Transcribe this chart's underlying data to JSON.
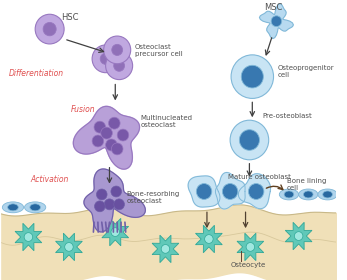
{
  "background_color": "#ffffff",
  "bone_color": "#f0e0b8",
  "bone_line_color": "#c8b888",
  "osteocyte_color": "#60c8b8",
  "osteocyte_stroke": "#30a898",
  "osteocyte_center_color": "#a0e8e0",
  "left_cell_color": "#c0a8e0",
  "left_cell_stroke": "#9878c0",
  "left_cell_nucleus_color": "#9070b8",
  "left_cell_big_color": "#b8a0d8",
  "left_cell_big_nucleus": "#7858a8",
  "bone_resorb_color": "#a898d0",
  "bone_resorb_nucleus": "#6850a0",
  "bone_resorb_stroke": "#7060a8",
  "right_cell_color": "#c8e4f4",
  "right_cell_stroke": "#80b8d8",
  "right_cell_nucleus_color": "#3878b0",
  "right_cell_small_color": "#b0d4ec",
  "right_cell_small_nucleus": "#2868a0",
  "msc_cell_color": "#b8daf0",
  "hsc_label": "HSC",
  "msc_label": "MSC",
  "diff_label": "Differentiation",
  "fusion_label": "Fusion",
  "activation_label": "Activation",
  "osteoclast_precursor_label": "Osteoclast\nprecursor cell",
  "multinucleated_label": "Multinucleated\nosteoclast",
  "bone_resorbing_label": "Bone-resorbing\nosteoclast",
  "osteoprogenitor_label": "Osteoprogenitor\ncell",
  "pre_osteoblast_label": "Pre-osteoblast",
  "mature_osteoblast_label": "Mature osteoblast",
  "bone_lining_label": "Bone lining\ncell",
  "osteocyte_label": "Osteocyte",
  "label_color_left": "#e05050",
  "label_color_dark": "#505050",
  "arrow_color": "#404040",
  "figsize": [
    3.47,
    2.8
  ],
  "dpi": 100
}
